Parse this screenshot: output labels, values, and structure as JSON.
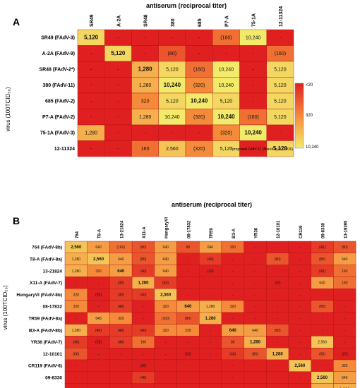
{
  "chart_data": [
    {
      "type": "heatmap",
      "panel_label": "A",
      "title": "antiserum (reciprocal titer)",
      "ylabel": "virus (100TCID₅₀)",
      "columns": [
        "SR49",
        "A-2A",
        "SR48",
        "380",
        "685",
        "P7-A",
        "75-1A",
        "12-11324"
      ],
      "rows": [
        "SR49 (FAdV-3)",
        "A-2A (FAdV-9)",
        "SR48 (FAdV-2*)",
        "380 (FAdV-11)",
        "685 (FAdV-2)",
        "P7-A (FAdV-2)",
        "75-1A (FAdV-3)",
        "12-11324"
      ],
      "cells": [
        [
          "5,120",
          "-",
          "-",
          "-",
          "-",
          "(160)",
          "10,240",
          "-"
        ],
        [
          "-",
          "5,120",
          "-",
          "(80)",
          "-",
          "-",
          "-",
          "(160)"
        ],
        [
          "-",
          "-",
          "1,280",
          "5,120",
          "(160)",
          "10,240",
          "-",
          "5,120"
        ],
        [
          "-",
          "-",
          "1,280",
          "10,240",
          "(320)",
          "10,240",
          "-",
          "5,120"
        ],
        [
          "-",
          "-",
          "320",
          "5,120",
          "10,240",
          "5,120",
          "-",
          "5,120"
        ],
        [
          "-",
          "-",
          "1,280",
          "10,240",
          "(320)",
          "10,240",
          "(160)",
          "5,120"
        ],
        [
          "1,280",
          "-",
          "-",
          "-",
          "-",
          "(320)",
          "10,240",
          "-"
        ],
        [
          "-",
          "-",
          "160",
          "2,560",
          "(320)",
          "5,120",
          "-",
          "5,120"
        ]
      ],
      "diagonal_bold": true,
      "color_scale": {
        "labels": [
          "<20",
          "320",
          "10,240"
        ],
        "low_color": "#e02020",
        "mid_color": "#f58a3a",
        "high_color": "#f4ea6a"
      },
      "footnote": "*proposed FAdV-11 (Marek et al., 2016)"
    },
    {
      "type": "heatmap",
      "panel_label": "B",
      "title": "antiserum (reciprocal titer)",
      "ylabel": "virus (100TCID₅₀)",
      "columns": [
        "764",
        "T8-A",
        "13-21824",
        "X11-A",
        "HungaryVI",
        "08-17832",
        "TR59",
        "B3-A",
        "YR36",
        "12-10101",
        "CR119",
        "09-8330",
        "13-19395"
      ],
      "rows": [
        "764 (FAdV-8b)",
        "T8-A (FAdV-8a)",
        "13-21824",
        "X11-A (FAdV-7)",
        "HungaryVI (FAdV-8b)",
        "08-17832",
        "TR59 (FAdV-8a)",
        "B3-A (FAdV-8b)",
        "YR36 (FAdV-7)",
        "12-10101",
        "CR119 (FAdV-6)",
        "09-8330",
        "13-19395"
      ],
      "cells": [
        [
          "2,560",
          "640",
          "(160)",
          "(80)",
          "640",
          "80",
          "640",
          "160",
          "-",
          "-",
          "-",
          "(40)",
          "(80)"
        ],
        [
          "1,280",
          "2,560",
          "640",
          "(80)",
          "640",
          "-",
          "(40)",
          "-",
          "-",
          "(80)",
          "-",
          "(80)",
          "640"
        ],
        [
          "1,280",
          "320",
          "640",
          "(40)",
          "640",
          "-",
          "(20)",
          "-",
          "-",
          "-",
          "-",
          "(40)",
          "160"
        ],
        [
          "-",
          "-",
          "(40)",
          "1,280",
          "(40)",
          "-",
          "-",
          "-",
          "-",
          "(20)",
          "-",
          "640",
          "160"
        ],
        [
          "320",
          "(20)",
          "(40)",
          "(40)",
          "2,560",
          "-",
          "-",
          "-",
          "-",
          "-",
          "-",
          "-",
          "-"
        ],
        [
          "320",
          "-",
          "(40)",
          "-",
          "320",
          "640",
          "1,280",
          "320",
          "-",
          "-",
          "-",
          "(80)",
          "-"
        ],
        [
          "-",
          "640",
          "320",
          "-",
          "(160)",
          "(80)",
          "1,280",
          "-",
          "-",
          "-",
          "-",
          "-",
          "-"
        ],
        [
          "1,280",
          "(40)",
          "(40)",
          "(40)",
          "320",
          "320",
          "-",
          "640",
          "640",
          "(80)",
          "-",
          "-",
          "-"
        ],
        [
          "(40)",
          "(20)",
          "(40)",
          "160",
          "-",
          "-",
          "-",
          "80",
          "1,280",
          "-",
          "-",
          "2,560",
          "-"
        ],
        [
          "(80)",
          "-",
          "-",
          "-",
          "-",
          "(10)",
          "-",
          "(40)",
          "(80)",
          "1,280",
          "-",
          "(80)",
          "(20)"
        ],
        [
          "-",
          "-",
          "-",
          "(20)",
          "-",
          "-",
          "-",
          "-",
          "-",
          "-",
          "2,560",
          "-",
          "320"
        ],
        [
          "-",
          "-",
          "-",
          "(40)",
          "-",
          "-",
          "-",
          "-",
          "-",
          "-",
          "-",
          "2,560",
          "640"
        ],
        [
          "-",
          "-",
          "-",
          "-",
          "-",
          "-",
          "-",
          "-",
          "-",
          "-",
          "-",
          "1,280",
          "1,280"
        ]
      ],
      "diagonal_bold": true
    }
  ]
}
